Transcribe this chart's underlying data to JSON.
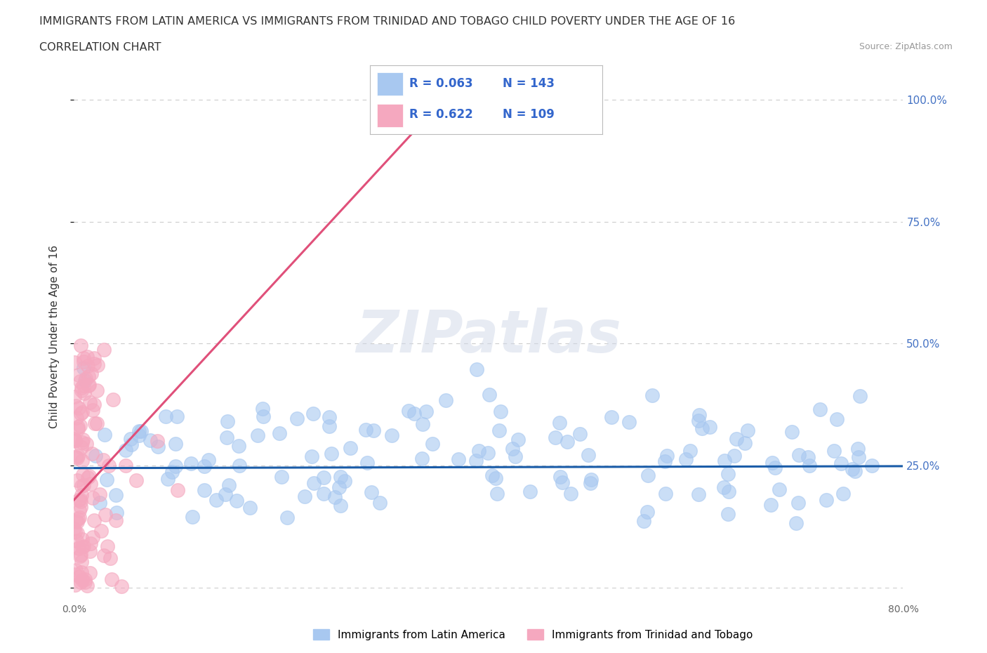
{
  "title_line1": "IMMIGRANTS FROM LATIN AMERICA VS IMMIGRANTS FROM TRINIDAD AND TOBAGO CHILD POVERTY UNDER THE AGE OF 16",
  "title_line2": "CORRELATION CHART",
  "source_text": "Source: ZipAtlas.com",
  "ylabel": "Child Poverty Under the Age of 16",
  "xlim": [
    0.0,
    0.8
  ],
  "ylim": [
    -0.02,
    1.05
  ],
  "ytick_positions": [
    0.0,
    0.25,
    0.5,
    0.75,
    1.0
  ],
  "ytick_labels": [
    "",
    "25.0%",
    "50.0%",
    "75.0%",
    "100.0%"
  ],
  "grid_color": "#cccccc",
  "background_color": "#ffffff",
  "watermark_text": "ZIPatlas",
  "scatter_blue_color": "#a8c8f0",
  "scatter_pink_color": "#f5a8bf",
  "line_blue_color": "#1a5ca8",
  "line_pink_color": "#e0507a",
  "R_blue": 0.063,
  "N_blue": 143,
  "R_pink": 0.622,
  "N_pink": 109,
  "legend_entries": [
    "Immigrants from Latin America",
    "Immigrants from Trinidad and Tobago"
  ],
  "title_fontsize": 11.5,
  "subtitle_fontsize": 11.5,
  "axis_label_fontsize": 11,
  "legend_fontsize": 11,
  "tick_fontsize": 10,
  "right_tick_color": "#4472c4",
  "seed_blue": 42,
  "seed_pink": 7
}
